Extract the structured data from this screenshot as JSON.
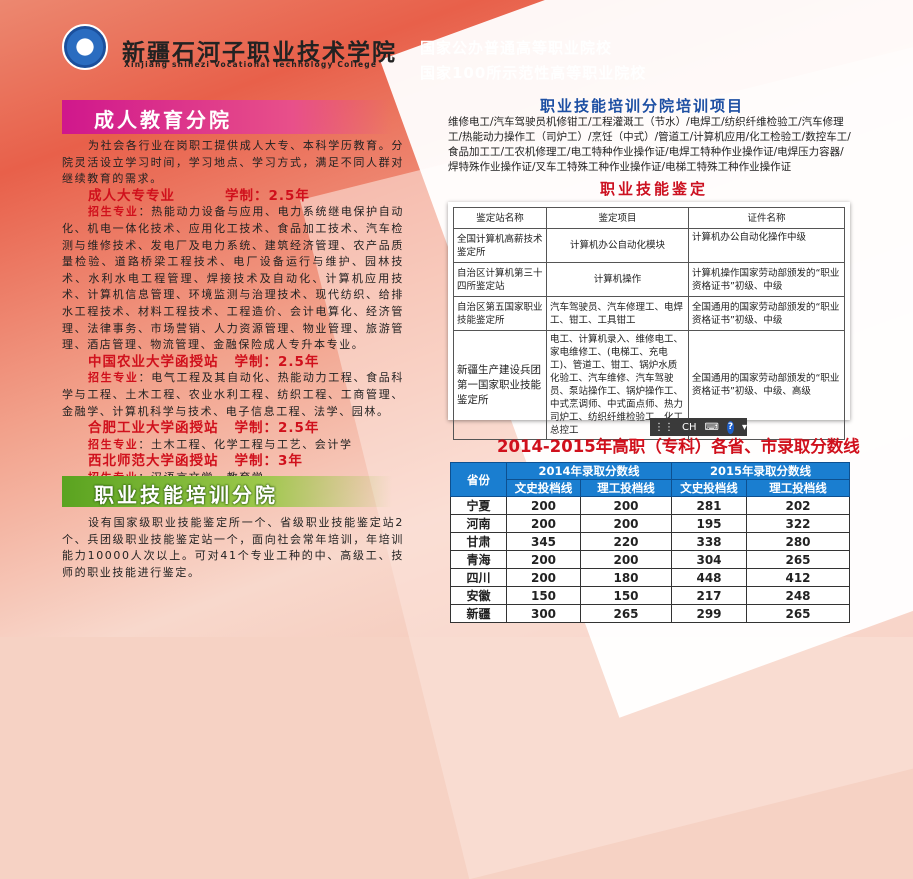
{
  "header": {
    "title": "新疆石河子职业技术学院",
    "subtitle_en": "Xinjiang shihezi Vocational Technology College",
    "slogans": [
      "国家公办普通高等职业院校",
      "国家100所示范性高等职业院校"
    ]
  },
  "adult": {
    "heading": "成人教育分院",
    "intro": "为社会各行业在岗职工提供成人大专、本科学历教育。分院灵活设立学习时间，学习地点、学习方式，满足不同人群对继续教育的需求。",
    "programs": [
      {
        "name": "成人大专专业",
        "duration": "学制：2.5年",
        "label": "招生专业",
        "majors": "：热能动力设备与应用、电力系统继电保护自动化、机电一体化技术、应用化工技术、食品加工技术、汽车检测与维修技术、发电厂及电力系统、建筑经济管理、农产品质量检验、道路桥梁工程技术、电厂设备运行与维护、园林技术、水利水电工程管理、焊接技术及自动化、计算机应用技术、计算机信息管理、环境监测与治理技术、现代纺织、给排水工程技术、材料工程技术、工程造价、会计电算化、经济管理、法律事务、市场营销、人力资源管理、物业管理、旅游管理、酒店管理、物流管理、金融保险成人专升本专业。"
      },
      {
        "name": "中国农业大学函授站",
        "duration": "学制：2.5年",
        "label": "招生专业",
        "majors": "：电气工程及其自动化、热能动力工程、食品科学与工程、土木工程、农业水利工程、纺织工程、工商管理、金融学、计算机科学与技术、电子信息工程、法学、园林。"
      },
      {
        "name": "合肥工业大学函授站",
        "duration": "学制：2.5年",
        "label": "招生专业",
        "majors": "：土木工程、化学工程与工艺、会计学"
      },
      {
        "name": "西北师范大学函授站",
        "duration": "学制：3年",
        "label": "招生专业",
        "majors": "：汉语言文学、教育学"
      }
    ]
  },
  "skills": {
    "heading": "职业技能培训分院",
    "intro": "设有国家级职业技能鉴定所一个、省级职业技能鉴定站2个、兵团级职业技能鉴定站一个，面向社会常年培训，年培训能力10000人次以上。可对41个专业工种的中、高级工、技师的职业技能进行鉴定。"
  },
  "training": {
    "title": "职业技能培训分院培训项目",
    "items": "维修电工/汽车驾驶员机修钳工/工程灌溉工（节水）/电焊工/纺织纤维检验工/汽车修理工/热能动力操作工（司炉工）/烹饪（中式）/管道工/计算机应用/化工检验工/数控车工/ 食品加工工/工农机修理工/电工特种作业操作证/电焊工特种作业操作证/电焊压力容器/焊特殊作业操作证/叉车工特殊工种作业操作证/电梯工特殊工种作业操作证"
  },
  "appraisal": {
    "title": "职业技能鉴定",
    "headers": [
      "鉴定站名称",
      "鉴定项目",
      "证件名称"
    ],
    "rows": [
      [
        "全国计算机高薪技术鉴定所",
        "计算机办公自动化模块",
        "计算机办公自动化操作中级"
      ],
      [
        "自治区计算机第三十四所鉴定站",
        "计算机操作",
        "计算机操作国家劳动部颁发的“职业资格证书”初级、中级"
      ],
      [
        "自治区第五国家职业技能鉴定所",
        "汽车驾驶员、汽车修理工、电焊工、钳工、工具钳工",
        "全国通用的国家劳动部颁发的“职业资格证书”初级、中级"
      ],
      [
        "新疆生产建设兵团第一国家职业技能鉴定所",
        "电工、计算机录入、维修电工、家电维修工、(电梯工、充电工)、管道工、钳工、锅炉水质化验工、汽车维修、汽车驾驶员、泵站操作工、锅炉操作工、中式烹调师、中式面点师、热力司炉工、纺织纤维检验工、化工总控工",
        "全国通用的国家劳动部颁发的“职业资格证书”初级、中级、高级"
      ]
    ]
  },
  "scores": {
    "title": "2014-2015年高职（专科）各省、市录取分数线",
    "province_header": "省份",
    "year_headers": [
      "2014年录取分数线",
      "2015年录取分数线"
    ],
    "sub_headers": [
      "文史投档线",
      "理工投档线",
      "文史投档线",
      "理工投档线"
    ],
    "rows": [
      [
        "宁夏",
        "200",
        "200",
        "281",
        "202"
      ],
      [
        "河南",
        "200",
        "200",
        "195",
        "322"
      ],
      [
        "甘肃",
        "345",
        "220",
        "338",
        "280"
      ],
      [
        "青海",
        "200",
        "200",
        "304",
        "265"
      ],
      [
        "四川",
        "200",
        "180",
        "448",
        "412"
      ],
      [
        "安徽",
        "150",
        "150",
        "217",
        "248"
      ],
      [
        "新疆",
        "300",
        "265",
        "299",
        "265"
      ]
    ]
  },
  "ime": {
    "lang": "CH",
    "help": "?"
  },
  "colors": {
    "accent_red": "#d0101c",
    "title_blue": "#1d4fa3",
    "header_blue": "#1a7ed0",
    "magenta": "#d0178c",
    "green": "#5aa320"
  }
}
